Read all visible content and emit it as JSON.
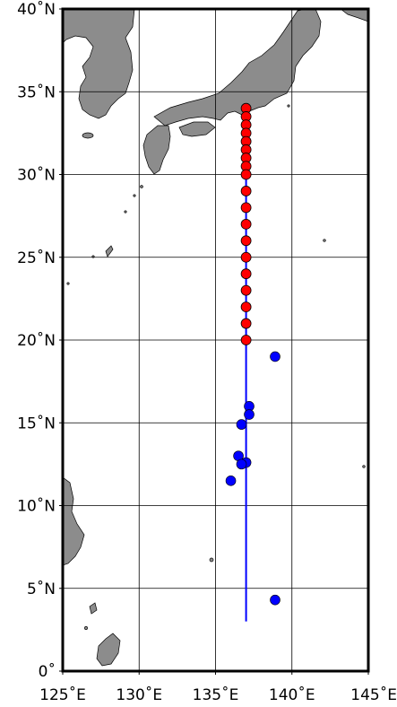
{
  "map": {
    "lon_range": [
      125,
      145
    ],
    "lat_range": [
      0,
      40
    ],
    "colors": {
      "land": "#8c8c8c",
      "ocean": "#ffffff",
      "track_line": "#0000ff",
      "red_markers": "#ff0000",
      "blue_markers": "#0000ff"
    },
    "x_ticks": [
      {
        "lon": 125,
        "label": "125˚E"
      },
      {
        "lon": 130,
        "label": "130˚E"
      },
      {
        "lon": 135,
        "label": "135˚E"
      },
      {
        "lon": 140,
        "label": "140˚E"
      },
      {
        "lon": 145,
        "label": "145˚E"
      }
    ],
    "y_ticks": [
      {
        "lat": 0,
        "label": "0˚"
      },
      {
        "lat": 5,
        "label": "5˚N"
      },
      {
        "lat": 10,
        "label": "10˚N"
      },
      {
        "lat": 15,
        "label": "15˚N"
      },
      {
        "lat": 20,
        "label": "20˚N"
      },
      {
        "lat": 25,
        "label": "25˚N"
      },
      {
        "lat": 30,
        "label": "30˚N"
      },
      {
        "lat": 35,
        "label": "35˚N"
      },
      {
        "lat": 40,
        "label": "40˚N"
      }
    ],
    "track_line": {
      "lon": 137.0,
      "lat_start": 3.0,
      "lat_end": 34.0
    },
    "red_stations": [
      {
        "lon": 137.0,
        "lat": 34.0
      },
      {
        "lon": 137.0,
        "lat": 33.5
      },
      {
        "lon": 137.0,
        "lat": 33.0
      },
      {
        "lon": 137.0,
        "lat": 32.5
      },
      {
        "lon": 137.0,
        "lat": 32.0
      },
      {
        "lon": 137.0,
        "lat": 31.5
      },
      {
        "lon": 137.0,
        "lat": 31.0
      },
      {
        "lon": 137.0,
        "lat": 30.5
      },
      {
        "lon": 137.0,
        "lat": 30.0
      },
      {
        "lon": 137.0,
        "lat": 29.0
      },
      {
        "lon": 137.0,
        "lat": 28.0
      },
      {
        "lon": 137.0,
        "lat": 27.0
      },
      {
        "lon": 137.0,
        "lat": 26.0
      },
      {
        "lon": 137.0,
        "lat": 25.0
      },
      {
        "lon": 137.0,
        "lat": 24.0
      },
      {
        "lon": 137.0,
        "lat": 23.0
      },
      {
        "lon": 137.0,
        "lat": 22.0
      },
      {
        "lon": 137.0,
        "lat": 21.0
      },
      {
        "lon": 137.0,
        "lat": 20.0
      }
    ],
    "blue_stations": [
      {
        "lon": 138.9,
        "lat": 19.0
      },
      {
        "lon": 137.2,
        "lat": 16.0
      },
      {
        "lon": 137.2,
        "lat": 15.5
      },
      {
        "lon": 136.7,
        "lat": 14.9
      },
      {
        "lon": 136.5,
        "lat": 13.0
      },
      {
        "lon": 137.0,
        "lat": 12.6
      },
      {
        "lon": 136.7,
        "lat": 12.5
      },
      {
        "lon": 136.0,
        "lat": 11.5
      },
      {
        "lon": 138.9,
        "lat": 4.3
      }
    ]
  }
}
